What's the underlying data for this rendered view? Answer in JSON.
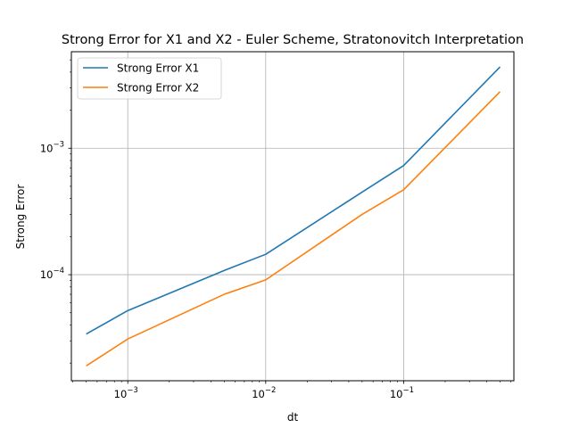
{
  "chart_data": {
    "type": "line",
    "title": "Strong Error for X1 and X2 - Euler Scheme, Stratonovitch Interpretation",
    "xlabel": "dt",
    "ylabel": "Strong Error",
    "xscale": "log",
    "yscale": "log",
    "xlim": [
      0.00039,
      0.63
    ],
    "ylim": [
      1.45e-05,
      0.0058
    ],
    "grid": true,
    "legend_position": "top-left",
    "x": [
      0.0005,
      0.001,
      0.005,
      0.01,
      0.05,
      0.1,
      0.5
    ],
    "series": [
      {
        "name": "Strong Error X1",
        "color": "#1f77b4",
        "values": [
          3.4e-05,
          5.2e-05,
          0.000108,
          0.000145,
          0.00045,
          0.00073,
          0.0044
        ]
      },
      {
        "name": " Strong Error X2",
        "color": "#ff7f0e",
        "values": [
          1.9e-05,
          3.1e-05,
          7e-05,
          9.1e-05,
          0.0003,
          0.00047,
          0.0028
        ]
      }
    ],
    "x_ticks": [
      {
        "base": "10",
        "exp": "−3",
        "value": 0.001
      },
      {
        "base": "10",
        "exp": "−2",
        "value": 0.01
      },
      {
        "base": "10",
        "exp": "−1",
        "value": 0.1
      }
    ],
    "y_ticks": [
      {
        "base": "10",
        "exp": "−4",
        "value": 0.0001
      },
      {
        "base": "10",
        "exp": "−3",
        "value": 0.001
      }
    ]
  }
}
